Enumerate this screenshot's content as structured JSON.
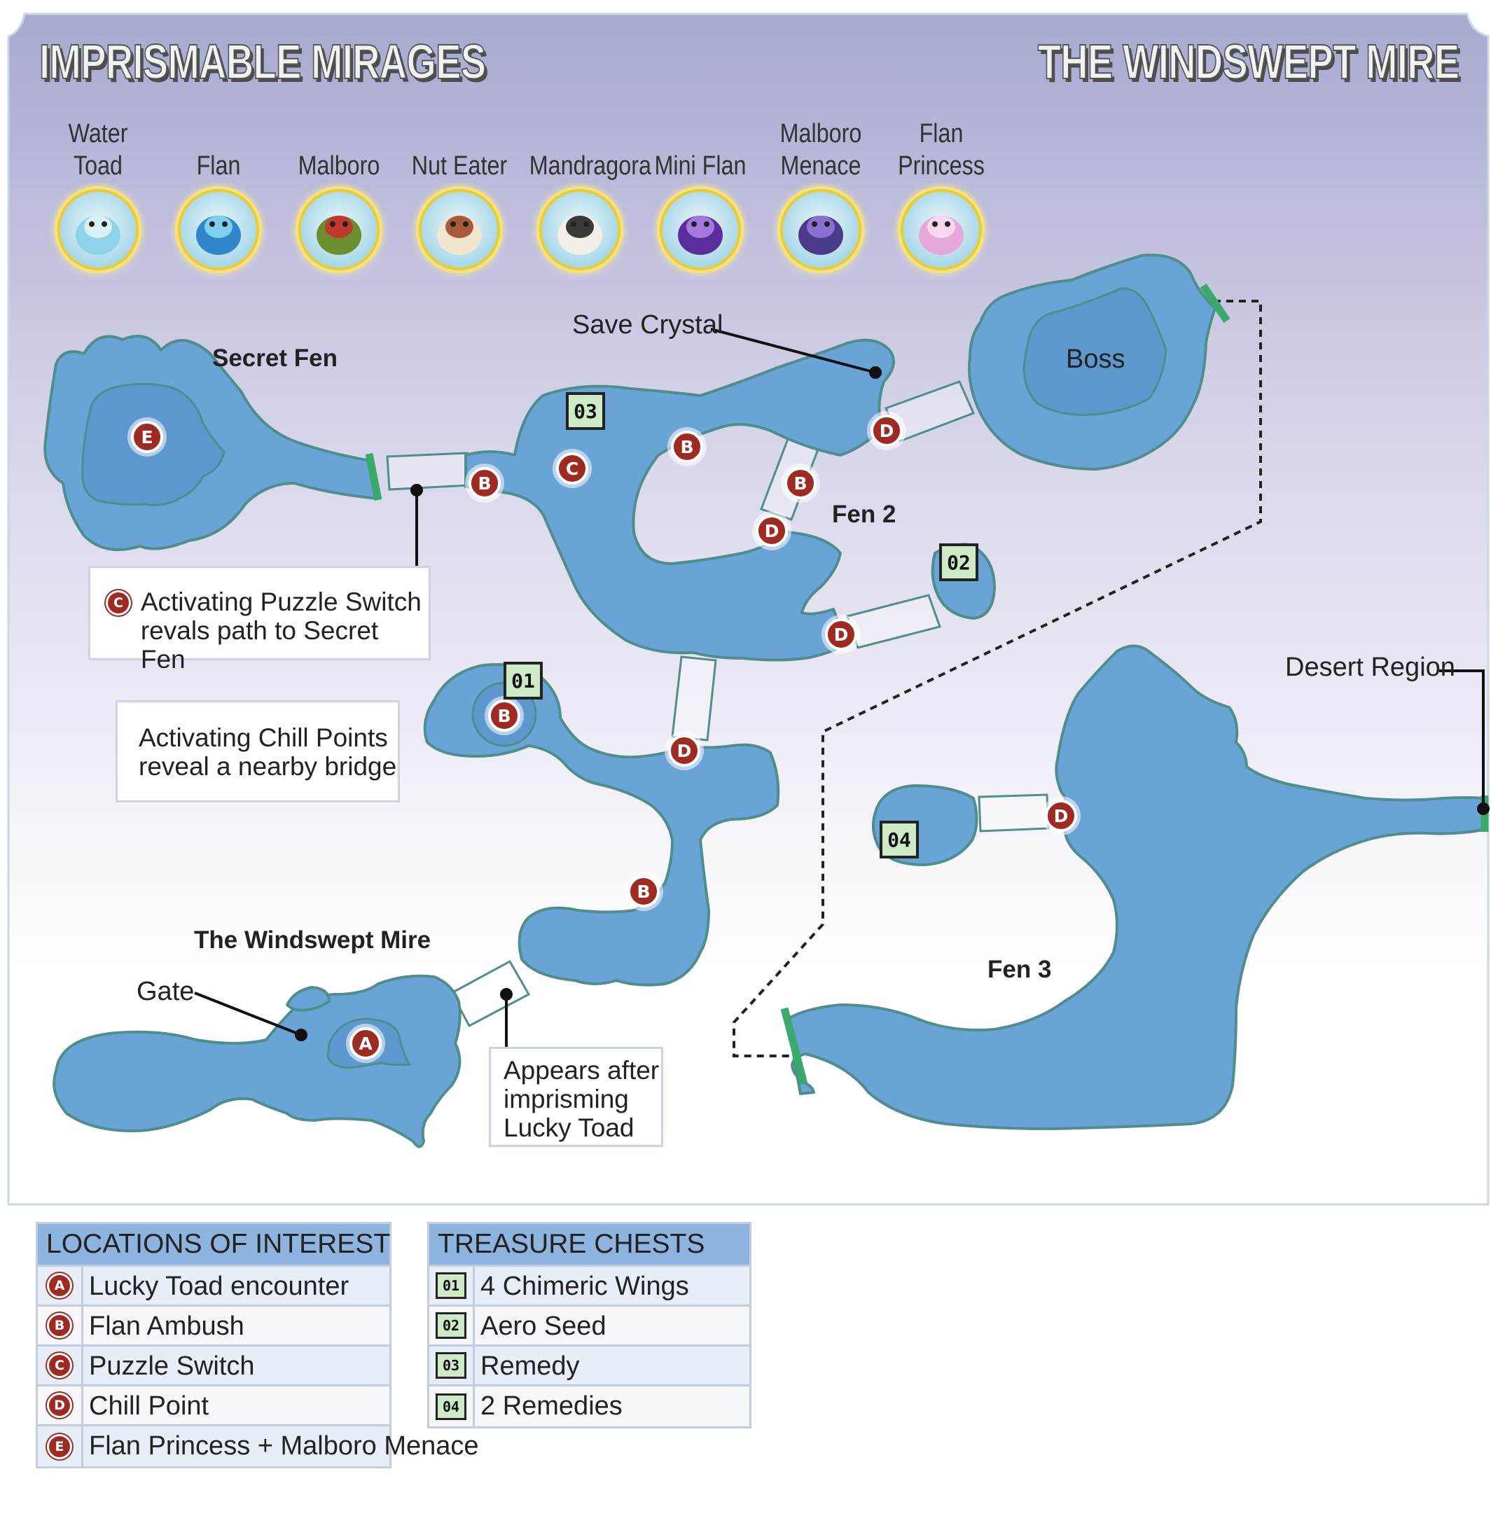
{
  "header": {
    "left_title": "IMPRISMABLE MIRAGES",
    "right_title": "THE WINDSWEPT MIRE"
  },
  "colors": {
    "water": "#6aa3d6",
    "shore": "#4f8e8c",
    "marker": "#9e2a22",
    "chest_fill": "#cde9c6",
    "exit": "#3aaa6a",
    "legend_header": "#8db3df"
  },
  "enemies": [
    {
      "line1": "Water",
      "line2": "Toad",
      "icon": "water-toad-portrait"
    },
    {
      "line1": "",
      "line2": "Flan",
      "icon": "flan-portrait"
    },
    {
      "line1": "",
      "line2": "Malboro",
      "icon": "malboro-portrait"
    },
    {
      "line1": "",
      "line2": "Nut Eater",
      "icon": "nut-eater-portrait"
    },
    {
      "line1": "",
      "line2": "Mandragora",
      "icon": "mandragora-portrait"
    },
    {
      "line1": "",
      "line2": "Mini Flan",
      "icon": "mini-flan-portrait"
    },
    {
      "line1": "Malboro",
      "line2": "Menace",
      "icon": "malboro-menace-portrait"
    },
    {
      "line1": "Flan",
      "line2": "Princess",
      "icon": "flan-princess-portrait"
    }
  ],
  "map": {
    "areas": {
      "secret_fen": "Secret Fen",
      "fen2": "Fen 2",
      "fen3": "Fen 3",
      "windswept_mire": "The Windswept Mire",
      "boss": "Boss"
    },
    "callouts": {
      "save_crystal": "Save Crystal",
      "desert_region": "Desert Region",
      "gate": "Gate"
    },
    "markers": {
      "A": "A",
      "B": "B",
      "C": "C",
      "D": "D",
      "E": "E"
    },
    "chests": {
      "c01": "01",
      "c02": "02",
      "c03": "03",
      "c04": "04"
    },
    "notes": {
      "puzzle_marker": "C",
      "puzzle_line1": "Activating Puzzle Switch",
      "puzzle_line2": "revals path to Secret Fen",
      "chill_line1": "Activating Chill Points",
      "chill_line2": "reveal a nearby bridge",
      "appears_line1": "Appears after",
      "appears_line2": "imprisming",
      "appears_line3": "Lucky Toad"
    }
  },
  "locations_legend": {
    "header": "LOCATIONS OF INTEREST",
    "rows": [
      {
        "key": "A",
        "text": "Lucky Toad encounter"
      },
      {
        "key": "B",
        "text": "Flan Ambush"
      },
      {
        "key": "C",
        "text": "Puzzle Switch"
      },
      {
        "key": "D",
        "text": "Chill Point"
      },
      {
        "key": "E",
        "text": "Flan Princess + Malboro Menace"
      }
    ]
  },
  "chests_legend": {
    "header": "TREASURE CHESTS",
    "rows": [
      {
        "key": "01",
        "text": "4 Chimeric Wings"
      },
      {
        "key": "02",
        "text": "Aero Seed"
      },
      {
        "key": "03",
        "text": "Remedy"
      },
      {
        "key": "04",
        "text": "2 Remedies"
      }
    ]
  }
}
